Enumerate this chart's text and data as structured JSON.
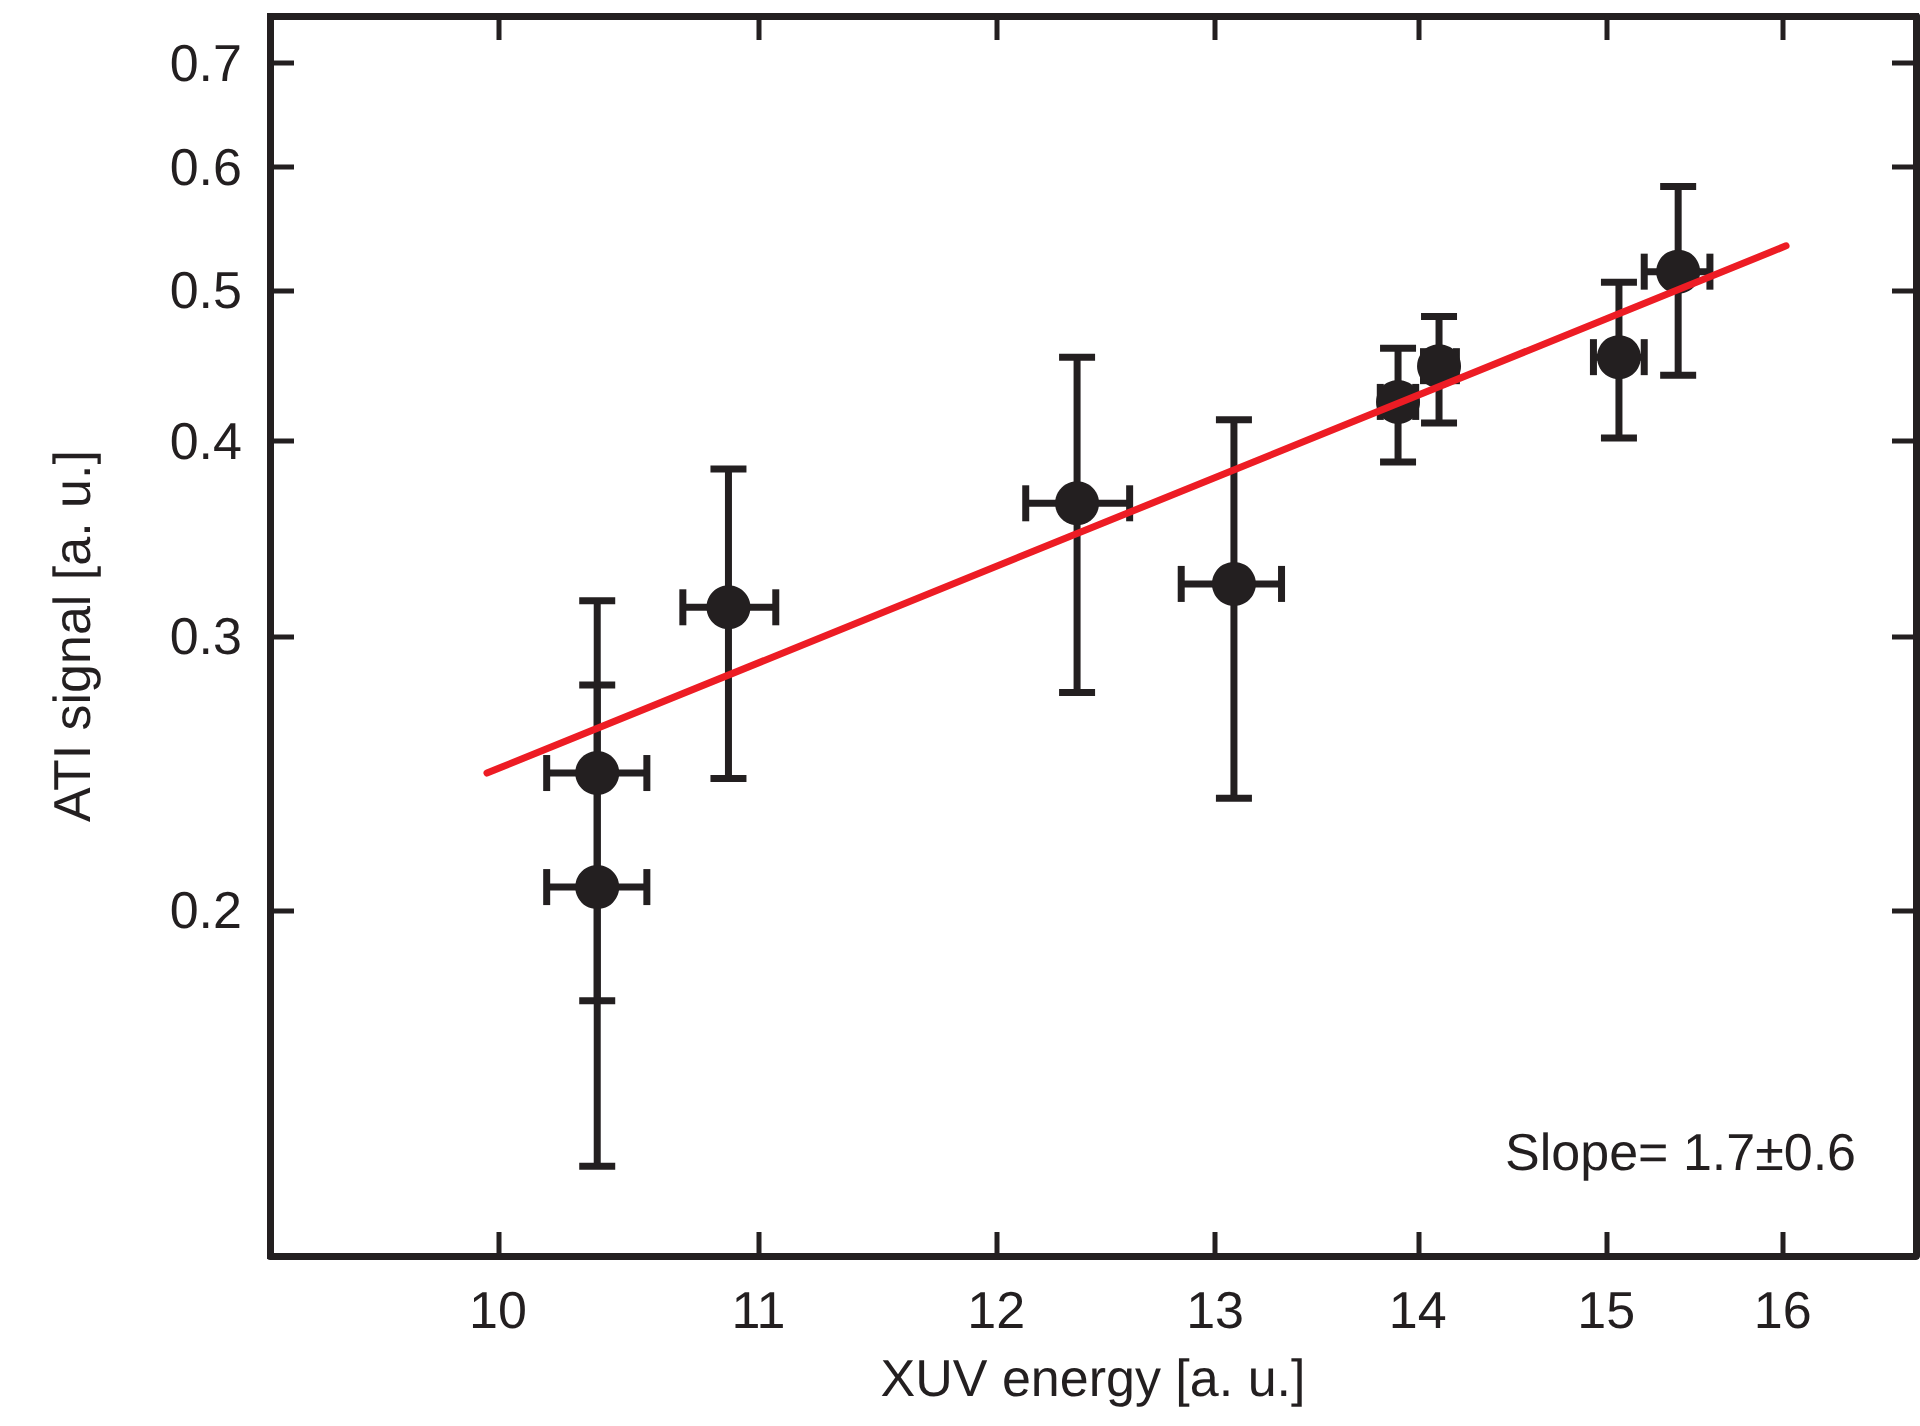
{
  "chart_data": {
    "type": "scatter",
    "xlabel": "XUV energy [a. u.]",
    "ylabel": "ATI signal [a. u.]",
    "log": "xy",
    "grid": false,
    "xlim": [
      9.2,
      16.8
    ],
    "ylim": [
      0.12,
      0.75
    ],
    "xticks": [
      10,
      11,
      12,
      13,
      14,
      15,
      16
    ],
    "yticks": [
      0.2,
      0.3,
      0.4,
      0.5,
      0.6,
      0.7
    ],
    "series": [
      {
        "marker": "circle",
        "color": "#231f20",
        "x": [
          10.37,
          10.37,
          10.88,
          12.36,
          13.09,
          13.9,
          14.11,
          15.07,
          15.4
        ],
        "values": [
          0.245,
          0.207,
          0.313,
          0.365,
          0.324,
          0.424,
          0.447,
          0.453,
          0.514
        ],
        "errors": [
          [
            0.175,
            0.279
          ],
          [
            0.137,
            0.316
          ],
          [
            0.243,
            0.384
          ],
          [
            0.276,
            0.453
          ],
          [
            0.236,
            0.413
          ],
          [
            0.388,
            0.459
          ],
          [
            0.411,
            0.481
          ],
          [
            0.402,
            0.506
          ],
          [
            0.441,
            0.583
          ]
        ],
        "xerrors": [
          [
            10.18,
            10.56
          ],
          [
            10.18,
            10.56
          ],
          [
            10.7,
            11.07
          ],
          [
            12.13,
            12.6
          ],
          [
            12.84,
            13.32
          ],
          [
            13.81,
            13.99
          ],
          [
            14.03,
            14.2
          ],
          [
            14.93,
            15.21
          ],
          [
            15.21,
            15.58
          ]
        ]
      },
      {
        "type": "line",
        "marker": "none",
        "color": "#ed1c24",
        "x": [
          9.96,
          16.02
        ],
        "values": [
          0.245,
          0.534
        ]
      }
    ],
    "annotations": [
      "Slope= 1.7±0.6"
    ]
  }
}
